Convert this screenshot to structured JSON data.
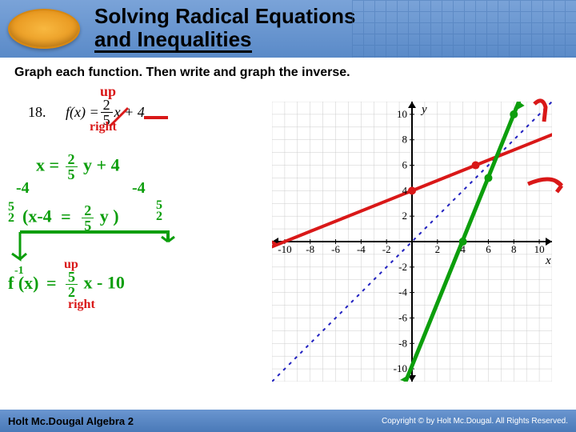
{
  "header": {
    "title_line1": "Solving Radical Equations",
    "title_line2": "and Inequalities"
  },
  "instruction": "Graph each function. Then write and graph the inverse.",
  "problem": {
    "number": "18.",
    "fx_prefix": "f(x) =",
    "frac_top": "2",
    "frac_bot": "5",
    "suffix": "x + 4"
  },
  "handwriting": {
    "up1": "up",
    "right1": "right",
    "up2": "up",
    "right2": "right",
    "eq1_left": "x =",
    "eq1_frac_top": "2",
    "eq1_frac_bot": "5",
    "eq1_right": "y + 4",
    "minus4_l": "-4",
    "minus4_r": "-4",
    "five_l": "5",
    "two_l": "2",
    "brack_l": "(x-4",
    "eq_mid": "=",
    "frac2_top": "2",
    "frac2_bot": "5",
    "y_r": "y )",
    "five_r": "5",
    "two_r": "2",
    "finv": "f  (x)",
    "finv_sup": "-1",
    "eq_inv": "=",
    "frac3_top": "5",
    "frac3_bot": "2",
    "inv_rest": "x - 10"
  },
  "footer": {
    "left": "Holt Mc.Dougal Algebra 2",
    "right": "Copyright © by Holt Mc.Dougal. All Rights Reserved."
  },
  "graph": {
    "xlim": [
      -11,
      11
    ],
    "ylim": [
      -11,
      11
    ],
    "tick_labels_x": [
      "-10",
      "-8",
      "-6",
      "-4",
      "-2",
      "2",
      "4",
      "6",
      "8",
      "10"
    ],
    "tick_major": [
      -10,
      -8,
      -6,
      -4,
      -2,
      2,
      4,
      6,
      8,
      10
    ],
    "xlabel": "x",
    "ylabel": "y",
    "grid_color": "#cccccc",
    "axis_color": "#000000",
    "red_line": {
      "pts": [
        [
          -11,
          -0.4
        ],
        [
          11,
          8.4
        ]
      ],
      "color": "#d91818",
      "width": 4
    },
    "green_line": {
      "pts": [
        [
          -0.5,
          -11
        ],
        [
          8.4,
          11
        ]
      ],
      "color": "#0c9e0c",
      "width": 5
    },
    "blue_dashed": {
      "pts": [
        [
          -11,
          -11
        ],
        [
          11,
          11
        ]
      ],
      "color": "#2020c0",
      "width": 2
    },
    "red_hook": {
      "color": "#d91818"
    },
    "green_points": [
      [
        4,
        0
      ],
      [
        6,
        5
      ],
      [
        8,
        10
      ]
    ],
    "red_points": [
      [
        0,
        4
      ],
      [
        5,
        6
      ]
    ]
  },
  "colors": {
    "red": "#d91818",
    "green": "#0c9e0c",
    "blue": "#2020c0"
  }
}
